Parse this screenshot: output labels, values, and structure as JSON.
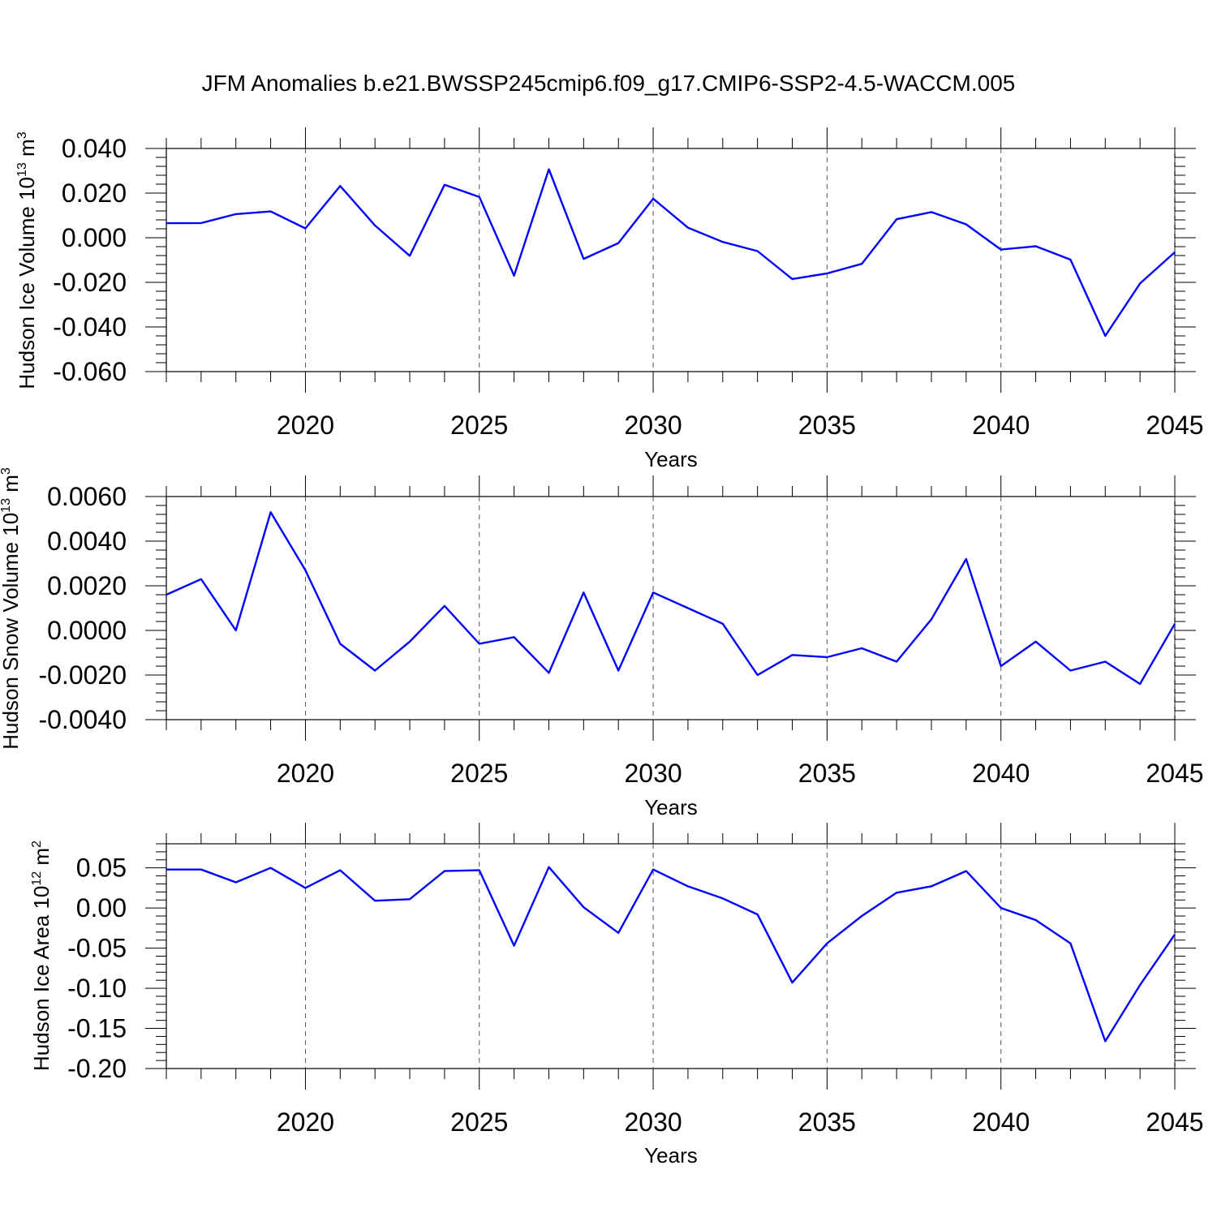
{
  "title": "JFM Anomalies b.e21.BWSSP245cmip6.f09_g17.CMIP6-SSP2-4.5-WACCM.005",
  "line_color": "#0000ff",
  "chart_data": [
    {
      "type": "line",
      "ylabel_main": "Hudson Ice Volume 10",
      "ylabel_exp": "13",
      "ylabel_unit": " m",
      "ylabel_unit_exp": "3",
      "xlabel": "Years",
      "xlim": [
        2016,
        2045
      ],
      "ylim": [
        -0.06,
        0.04
      ],
      "ymajor": [
        -0.06,
        -0.04,
        -0.02,
        0.0,
        0.02,
        0.04
      ],
      "ytick_labels": [
        "-0.060",
        "-0.040",
        "-0.020",
        "0.000",
        "0.020",
        "0.040"
      ],
      "xticks": [
        2020,
        2025,
        2030,
        2035,
        2040,
        2045
      ],
      "xtick_labels": [
        "2020",
        "2025",
        "2030",
        "2035",
        "2040",
        "2045"
      ],
      "grid": "dashed vertical lines at labeled years",
      "x": [
        2016,
        2017,
        2018,
        2019,
        2020,
        2021,
        2022,
        2023,
        2024,
        2025,
        2026,
        2027,
        2028,
        2029,
        2030,
        2031,
        2032,
        2033,
        2034,
        2035,
        2036,
        2037,
        2038,
        2039,
        2040,
        2041,
        2042,
        2043,
        2044,
        2045
      ],
      "y": [
        0.0065,
        0.0066,
        0.0106,
        0.0118,
        0.0042,
        0.0232,
        0.0055,
        -0.0081,
        0.0237,
        0.0183,
        -0.017,
        0.0307,
        -0.0095,
        -0.0024,
        0.0175,
        0.0045,
        -0.0019,
        -0.006,
        -0.0185,
        -0.016,
        -0.0117,
        0.0083,
        0.0115,
        0.006,
        -0.0053,
        -0.0038,
        -0.0098,
        -0.044,
        -0.0205,
        -0.0065
      ]
    },
    {
      "type": "line",
      "ylabel_main": "Hudson Snow Volume 10",
      "ylabel_exp": "13",
      "ylabel_unit": " m",
      "ylabel_unit_exp": "3",
      "xlabel": "Years",
      "xlim": [
        2016,
        2045
      ],
      "ylim": [
        -0.004,
        0.006
      ],
      "ymajor": [
        -0.004,
        -0.002,
        0.0,
        0.002,
        0.004,
        0.006
      ],
      "ytick_labels": [
        "-0.0040",
        "-0.0020",
        "0.0000",
        "0.0020",
        "0.0040",
        "0.0060"
      ],
      "xticks": [
        2020,
        2025,
        2030,
        2035,
        2040,
        2045
      ],
      "xtick_labels": [
        "2020",
        "2025",
        "2030",
        "2035",
        "2040",
        "2045"
      ],
      "grid": "dashed vertical lines at labeled years",
      "x": [
        2016,
        2017,
        2018,
        2019,
        2020,
        2021,
        2022,
        2023,
        2024,
        2025,
        2026,
        2027,
        2028,
        2029,
        2030,
        2031,
        2032,
        2033,
        2034,
        2035,
        2036,
        2037,
        2038,
        2039,
        2040,
        2041,
        2042,
        2043,
        2044,
        2045
      ],
      "y": [
        0.0016,
        0.0023,
        0.0,
        0.0053,
        0.0027,
        -0.0006,
        -0.0018,
        -0.0005,
        0.0011,
        -0.0006,
        -0.0003,
        -0.0019,
        0.0017,
        -0.0018,
        0.0017,
        0.001,
        0.0003,
        -0.002,
        -0.0011,
        -0.0012,
        -0.0008,
        -0.0014,
        0.0005,
        0.0032,
        -0.0016,
        -0.0005,
        -0.0018,
        -0.0014,
        -0.0024,
        0.0003
      ]
    },
    {
      "type": "line",
      "ylabel_main": "Hudson Ice Area 10",
      "ylabel_exp": "12",
      "ylabel_unit": " m",
      "ylabel_unit_exp": "2",
      "xlabel": "Years",
      "xlim": [
        2016,
        2045
      ],
      "ylim": [
        -0.2,
        0.08
      ],
      "ymajor": [
        -0.2,
        -0.15,
        -0.1,
        -0.05,
        0.0,
        0.05
      ],
      "ytick_labels": [
        "-0.20",
        "-0.15",
        "-0.10",
        "-0.05",
        "0.00",
        "0.05"
      ],
      "xticks": [
        2020,
        2025,
        2030,
        2035,
        2040,
        2045
      ],
      "xtick_labels": [
        "2020",
        "2025",
        "2030",
        "2035",
        "2040",
        "2045"
      ],
      "grid": "dashed vertical lines at labeled years",
      "x": [
        2016,
        2017,
        2018,
        2019,
        2020,
        2021,
        2022,
        2023,
        2024,
        2025,
        2026,
        2027,
        2028,
        2029,
        2030,
        2031,
        2032,
        2033,
        2034,
        2035,
        2036,
        2037,
        2038,
        2039,
        2040,
        2041,
        2042,
        2043,
        2044,
        2045
      ],
      "y": [
        0.048,
        0.048,
        0.032,
        0.05,
        0.025,
        0.047,
        0.009,
        0.011,
        0.046,
        0.047,
        -0.047,
        0.051,
        0.001,
        -0.031,
        0.048,
        0.027,
        0.012,
        -0.008,
        -0.093,
        -0.044,
        -0.01,
        0.019,
        0.027,
        0.046,
        0.0,
        -0.015,
        -0.044,
        -0.166,
        -0.096,
        -0.033
      ]
    }
  ]
}
